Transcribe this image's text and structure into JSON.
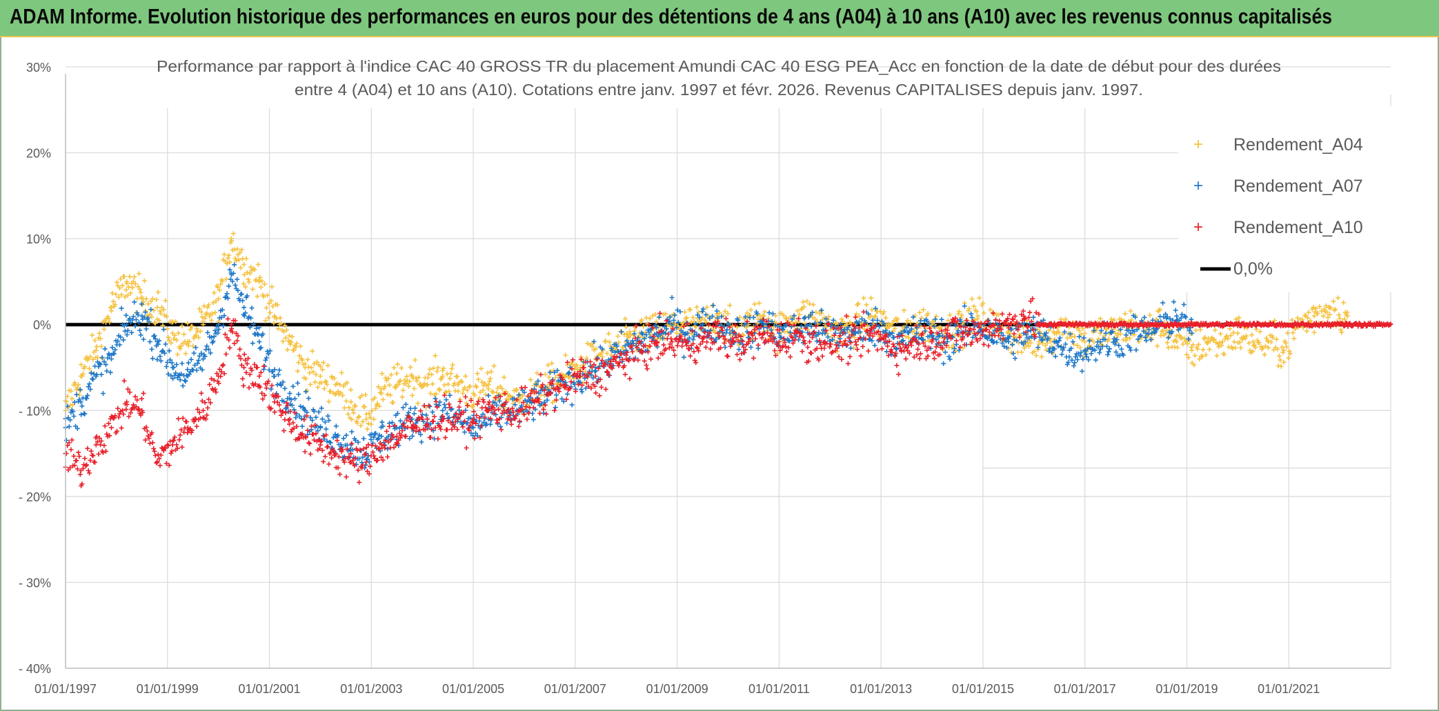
{
  "banner": {
    "text": "ADAM Informe. Evolution historique des performances en euros pour des détentions de 4 ans (A04) à 10 ans (A10) avec les revenus connus capitalisés"
  },
  "chart_data": {
    "type": "scatter",
    "title_line1": "Performance par rapport à l'indice CAC 40 GROSS TR  du placement Amundi CAC 40 ESG PEA_Acc en fonction de la date de début pour des durées",
    "title_line2": "entre 4 (A04) et 10 ans (A10). Cotations entre janv. 1997 et févr. 2026. Revenus CAPITALISES depuis janv. 1997.",
    "xlabel": "",
    "ylabel": "",
    "x_range": [
      1997.0,
      2023.0
    ],
    "ylim": [
      -40,
      30
    ],
    "y_ticks": [
      30,
      20,
      10,
      0,
      -10,
      -20,
      -30,
      -40
    ],
    "y_tick_labels": [
      "30%",
      "20%",
      "10%",
      "0%",
      "- 10%",
      "- 20%",
      "- 30%",
      "- 40%"
    ],
    "x_ticks": [
      1997,
      1999,
      2001,
      2003,
      2005,
      2007,
      2009,
      2011,
      2013,
      2015,
      2017,
      2019,
      2021
    ],
    "x_tick_labels": [
      "01/01/1997",
      "01/01/1999",
      "01/01/2001",
      "01/01/2003",
      "01/01/2005",
      "01/01/2007",
      "01/01/2009",
      "01/01/2011",
      "01/01/2013",
      "01/01/2015",
      "01/01/2017",
      "01/01/2019",
      "01/01/2021"
    ],
    "grid": true,
    "legend_position": "top-right",
    "reference_line": {
      "name": "0,0%",
      "value": 0,
      "color": "#000000"
    },
    "series": [
      {
        "name": "Rendement_A04",
        "color": "#f5c242",
        "marker": "+",
        "start": 1997.0,
        "end": 2022.15,
        "x": [
          1997.0,
          1997.3,
          1997.6,
          1997.9,
          1998.2,
          1998.5,
          1998.8,
          1999.1,
          1999.4,
          1999.7,
          2000.0,
          2000.25,
          2000.5,
          2000.8,
          2001.1,
          2001.4,
          2001.7,
          2002.0,
          2002.3,
          2002.6,
          2002.9,
          2003.2,
          2003.5,
          2003.8,
          2004.1,
          2004.4,
          2004.7,
          2005.0,
          2005.3,
          2005.6,
          2005.9,
          2006.2,
          2006.5,
          2006.8,
          2007.1,
          2007.4,
          2007.7,
          2008.0,
          2008.3,
          2008.6,
          2008.9,
          2009.2,
          2009.5,
          2009.8,
          2010.1,
          2010.4,
          2010.7,
          2011.0,
          2011.3,
          2011.6,
          2011.9,
          2012.2,
          2012.5,
          2012.8,
          2013.1,
          2013.4,
          2013.7,
          2014.0,
          2014.3,
          2014.6,
          2014.9,
          2015.2,
          2015.5,
          2015.8,
          2016.1,
          2016.4,
          2016.7,
          2017.0,
          2017.3,
          2017.6,
          2017.9,
          2018.2,
          2018.5,
          2018.8,
          2019.1,
          2019.4,
          2019.7,
          2020.0,
          2020.3,
          2020.6,
          2020.9,
          2021.2,
          2021.5,
          2021.8,
          2022.15
        ],
        "y": [
          -10,
          -6,
          -3,
          2,
          5,
          3,
          2,
          -1,
          -2,
          0,
          3,
          10,
          7,
          5,
          1,
          -2,
          -5,
          -6,
          -7,
          -9,
          -11,
          -8,
          -7,
          -6,
          -7,
          -6,
          -7,
          -8,
          -7,
          -8,
          -9,
          -8,
          -7,
          -6,
          -5,
          -4,
          -3,
          -2,
          -1,
          -1,
          0,
          0,
          0,
          1,
          -1,
          0,
          1,
          -1,
          1,
          1,
          0,
          -1,
          0,
          1,
          0,
          -1,
          0,
          0,
          -1,
          0,
          1,
          0,
          -1,
          -2,
          -2,
          -1,
          0,
          -2,
          -1,
          -1,
          0,
          -1,
          0,
          -2,
          -3,
          -2,
          -2,
          -1,
          -2,
          -2,
          -3,
          0,
          1,
          2,
          1
        ],
        "spread": 1.6
      },
      {
        "name": "Rendement_A07",
        "color": "#1f78c8",
        "marker": "+",
        "start": 1997.0,
        "end": 2019.1,
        "x": [
          1997.0,
          1997.3,
          1997.6,
          1997.9,
          1998.2,
          1998.5,
          1998.8,
          1999.1,
          1999.4,
          1999.7,
          2000.0,
          2000.25,
          2000.5,
          2000.8,
          2001.1,
          2001.4,
          2001.7,
          2002.0,
          2002.3,
          2002.6,
          2002.9,
          2003.2,
          2003.5,
          2003.8,
          2004.1,
          2004.4,
          2004.7,
          2005.0,
          2005.3,
          2005.6,
          2005.9,
          2006.2,
          2006.5,
          2006.8,
          2007.1,
          2007.4,
          2007.7,
          2008.0,
          2008.3,
          2008.6,
          2008.9,
          2009.2,
          2009.5,
          2009.8,
          2010.1,
          2010.4,
          2010.7,
          2011.0,
          2011.3,
          2011.6,
          2011.9,
          2012.2,
          2012.5,
          2012.8,
          2013.1,
          2013.4,
          2013.7,
          2014.0,
          2014.3,
          2014.6,
          2014.9,
          2015.2,
          2015.5,
          2015.8,
          2016.1,
          2016.4,
          2016.7,
          2017.0,
          2017.3,
          2017.6,
          2017.9,
          2018.2,
          2018.5,
          2018.8,
          2019.1
        ],
        "y": [
          -12,
          -9,
          -6,
          -4,
          0,
          1,
          -2,
          -5,
          -6,
          -4,
          0,
          6,
          2,
          -2,
          -6,
          -8,
          -10,
          -12,
          -13,
          -14,
          -15,
          -13,
          -12,
          -11,
          -11,
          -10,
          -11,
          -12,
          -11,
          -10,
          -10,
          -9,
          -8,
          -7,
          -6,
          -5,
          -4,
          -3,
          -2,
          -1,
          0,
          -1,
          0,
          0,
          -1,
          -1,
          0,
          -1,
          -1,
          0,
          -1,
          -1,
          -1,
          0,
          -1,
          -2,
          -1,
          -1,
          -2,
          -1,
          0,
          -1,
          -2,
          -1,
          -1,
          -2,
          -3,
          -3,
          -2,
          -2,
          -1,
          -1,
          0,
          1,
          -1
        ],
        "spread": 1.6
      },
      {
        "name": "Rendement_A10",
        "color": "#e8202a",
        "marker": "+",
        "start": 1997.0,
        "end": 2016.1,
        "x": [
          1997.0,
          1997.3,
          1997.6,
          1997.9,
          1998.2,
          1998.5,
          1998.8,
          1999.1,
          1999.4,
          1999.7,
          2000.0,
          2000.25,
          2000.5,
          2000.8,
          2001.1,
          2001.4,
          2001.7,
          2002.0,
          2002.3,
          2002.6,
          2002.9,
          2003.2,
          2003.5,
          2003.8,
          2004.1,
          2004.4,
          2004.7,
          2005.0,
          2005.3,
          2005.6,
          2005.9,
          2006.2,
          2006.5,
          2006.8,
          2007.1,
          2007.4,
          2007.7,
          2008.0,
          2008.3,
          2008.6,
          2008.9,
          2009.2,
          2009.5,
          2009.8,
          2010.1,
          2010.4,
          2010.7,
          2011.0,
          2011.3,
          2011.6,
          2011.9,
          2012.2,
          2012.5,
          2012.8,
          2013.1,
          2013.4,
          2013.7,
          2014.0,
          2014.3,
          2014.6,
          2014.9,
          2015.2,
          2015.5,
          2015.8,
          2016.1
        ],
        "y": [
          -15,
          -17,
          -14,
          -12,
          -9,
          -10,
          -16,
          -14,
          -12,
          -10,
          -6,
          0,
          -5,
          -6,
          -9,
          -11,
          -13,
          -14,
          -15,
          -16,
          -16,
          -14,
          -13,
          -12,
          -11,
          -11,
          -11,
          -11,
          -10,
          -10,
          -10,
          -9,
          -8,
          -7,
          -6,
          -6,
          -5,
          -4,
          -3,
          -2,
          -2,
          -2,
          -2,
          -1,
          -2,
          -2,
          -1,
          -2,
          -1,
          -2,
          -2,
          -2,
          -2,
          -1,
          -2,
          -3,
          -2,
          -2,
          -1,
          -1,
          -1,
          0,
          0,
          1,
          0
        ],
        "spread": 1.6
      }
    ],
    "flat_segment": {
      "series": "Rendement_A10",
      "x_start": 2016.1,
      "x_end": 2023.0,
      "value": 0
    }
  }
}
